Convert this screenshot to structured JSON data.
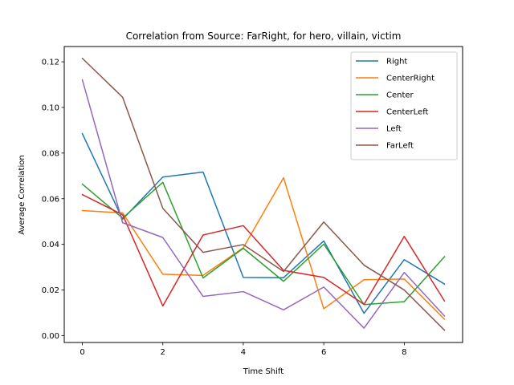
{
  "chart_data": {
    "type": "line",
    "title": "Correlation from Source: FarRight, for hero, villain, victim",
    "xlabel": "Time Shift",
    "ylabel": "Average Correlation",
    "xlim": [
      -0.45,
      9.45
    ],
    "ylim": [
      -0.003,
      0.1267
    ],
    "xticks": [
      0,
      2,
      4,
      6,
      8
    ],
    "yticks": [
      0.0,
      0.02,
      0.04,
      0.06,
      0.08,
      0.1,
      0.12
    ],
    "ytick_labels": [
      "0.00",
      "0.02",
      "0.04",
      "0.06",
      "0.08",
      "0.10",
      "0.12"
    ],
    "grid": false,
    "legend_position": "top-right",
    "x": [
      0,
      1,
      2,
      3,
      4,
      5,
      6,
      7,
      8,
      9
    ],
    "series": [
      {
        "name": "Right",
        "color": "#1f77b4",
        "values": [
          0.0885,
          0.051,
          0.0695,
          0.0717,
          0.0255,
          0.0254,
          0.0415,
          0.0098,
          0.0333,
          0.0226
        ]
      },
      {
        "name": "CenterRight",
        "color": "#ff7f0e",
        "values": [
          0.0548,
          0.0538,
          0.0269,
          0.0264,
          0.0385,
          0.0692,
          0.0118,
          0.0245,
          0.0248,
          0.0072
        ]
      },
      {
        "name": "Center",
        "color": "#2ca02c",
        "values": [
          0.0664,
          0.0515,
          0.0672,
          0.0253,
          0.0383,
          0.0238,
          0.0401,
          0.0136,
          0.0149,
          0.0346
        ]
      },
      {
        "name": "CenterLeft",
        "color": "#d62728",
        "values": [
          0.0618,
          0.053,
          0.013,
          0.0441,
          0.0482,
          0.0286,
          0.0255,
          0.0137,
          0.0435,
          0.0152
        ]
      },
      {
        "name": "Left",
        "color": "#9467bd",
        "values": [
          0.1121,
          0.0495,
          0.043,
          0.0172,
          0.0193,
          0.0113,
          0.0213,
          0.0033,
          0.0277,
          0.0086
        ]
      },
      {
        "name": "FarLeft",
        "color": "#8c564b",
        "values": [
          0.1215,
          0.1045,
          0.0558,
          0.0365,
          0.0399,
          0.0281,
          0.0498,
          0.0309,
          0.02,
          0.0024
        ]
      }
    ]
  }
}
